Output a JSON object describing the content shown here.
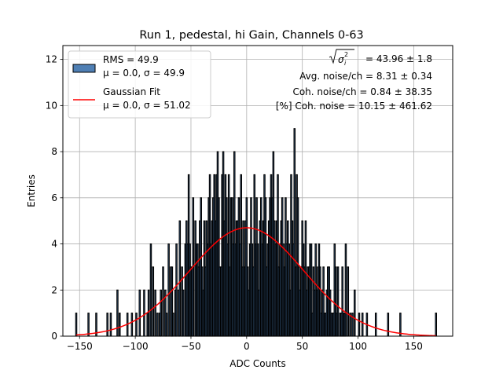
{
  "chart_data": {
    "type": "bar",
    "title": "Run 1, pedestal, hi Gain, Channels 0-63",
    "xlabel": "ADC Counts",
    "ylabel": "Entries",
    "xlim": [
      -165,
      185
    ],
    "ylim": [
      0,
      12.6
    ],
    "xticks": [
      -150,
      -100,
      -50,
      0,
      50,
      100,
      150
    ],
    "xtick_labels": [
      "−150",
      "−100",
      "−50",
      "0",
      "50",
      "100",
      "150"
    ],
    "yticks": [
      0,
      2,
      4,
      6,
      8,
      10,
      12
    ],
    "ytick_labels": [
      "0",
      "2",
      "4",
      "6",
      "8",
      "10",
      "12"
    ],
    "grid": true,
    "bin_width": 1,
    "histogram": {
      "name": "RMS = 49.9",
      "name_line2": "μ = 0.0, σ = 49.9",
      "fill": "#4f7fb4",
      "edge": "#000000",
      "x": [
        -153,
        -142,
        -135,
        -125,
        -122,
        -116,
        -114,
        -107,
        -103,
        -99,
        -96,
        -92,
        -89,
        -88,
        -86,
        -84,
        -82,
        -80,
        -78,
        -77,
        -75,
        -73,
        -72,
        -70,
        -68,
        -67,
        -66,
        -64,
        -63,
        -61,
        -60,
        -58,
        -57,
        -55,
        -54,
        -53,
        -52,
        -51,
        -50,
        -49,
        -48,
        -46,
        -45,
        -44,
        -43,
        -42,
        -41,
        -40,
        -39,
        -38,
        -37,
        -36,
        -35,
        -34,
        -33,
        -32,
        -31,
        -30,
        -29,
        -28,
        -27,
        -26,
        -25,
        -24,
        -23,
        -22,
        -21,
        -20,
        -19,
        -18,
        -17,
        -16,
        -15,
        -14,
        -13,
        -12,
        -11,
        -10,
        -9,
        -8,
        -7,
        -6,
        -5,
        -4,
        -3,
        -2,
        -1,
        0,
        1,
        2,
        3,
        4,
        5,
        6,
        7,
        8,
        9,
        10,
        11,
        12,
        13,
        14,
        15,
        16,
        17,
        18,
        19,
        20,
        21,
        22,
        23,
        24,
        25,
        26,
        27,
        28,
        29,
        30,
        31,
        32,
        33,
        34,
        35,
        36,
        37,
        38,
        39,
        40,
        41,
        42,
        43,
        44,
        45,
        46,
        47,
        48,
        49,
        50,
        51,
        52,
        53,
        54,
        55,
        56,
        57,
        58,
        59,
        60,
        61,
        62,
        63,
        64,
        65,
        66,
        67,
        68,
        69,
        70,
        71,
        72,
        73,
        74,
        75,
        76,
        77,
        78,
        79,
        80,
        81,
        82,
        84,
        85,
        86,
        87,
        88,
        89,
        91,
        93,
        95,
        97,
        101,
        104,
        108,
        116,
        127,
        138,
        170
      ],
      "values": [
        1,
        1,
        1,
        1,
        1,
        2,
        1,
        1,
        1,
        1,
        2,
        2,
        1,
        2,
        4,
        3,
        2,
        1,
        1,
        2,
        3,
        2,
        1,
        4,
        3,
        3,
        1,
        2,
        4,
        2,
        5,
        3,
        2,
        4,
        5,
        4,
        7,
        4,
        3,
        3,
        6,
        5,
        4,
        4,
        3,
        5,
        6,
        3,
        2,
        5,
        3,
        5,
        4,
        6,
        7,
        4,
        5,
        6,
        7,
        5,
        7,
        8,
        6,
        3,
        3,
        7,
        8,
        5,
        7,
        6,
        4,
        7,
        3,
        6,
        6,
        4,
        8,
        4,
        5,
        5,
        6,
        4,
        7,
        3,
        5,
        3,
        5,
        6,
        3,
        2,
        4,
        6,
        4,
        3,
        7,
        4,
        6,
        4,
        2,
        5,
        6,
        4,
        5,
        7,
        6,
        3,
        4,
        5,
        6,
        7,
        6,
        8,
        5,
        4,
        5,
        7,
        3,
        4,
        5,
        6,
        4,
        3,
        6,
        4,
        5,
        4,
        2,
        7,
        5,
        4,
        9,
        3,
        7,
        6,
        3,
        2,
        3,
        5,
        4,
        3,
        5,
        2,
        3,
        3,
        4,
        4,
        1,
        3,
        2,
        4,
        2,
        3,
        4,
        3,
        1,
        2,
        3,
        1,
        1,
        2,
        3,
        3,
        2,
        1,
        1,
        1,
        4,
        3,
        1,
        3,
        1,
        1,
        3,
        1,
        1,
        4,
        3,
        1,
        1,
        2,
        1,
        1,
        1,
        1,
        1,
        1,
        1
      ]
    },
    "fit": {
      "name": "Gaussian Fit",
      "name_line2": "μ = 0.0, σ = 51.02",
      "color": "#ff0000",
      "function": "gaussian",
      "mu": 0.0,
      "sigma": 51.02,
      "amplitude": 4.7,
      "x_range": [
        -153,
        170
      ]
    },
    "legend": {
      "position": "top-left"
    },
    "annotations": {
      "position": "top-right",
      "line1_suffix": " = 43.96 ± 1.8",
      "line2": "Avg. noise/ch = 8.31 ± 0.34",
      "line3": "Coh. noise/ch = 0.84 ± 38.35",
      "line4": "[%] Coh. noise = 10.15 ± 461.62"
    }
  }
}
